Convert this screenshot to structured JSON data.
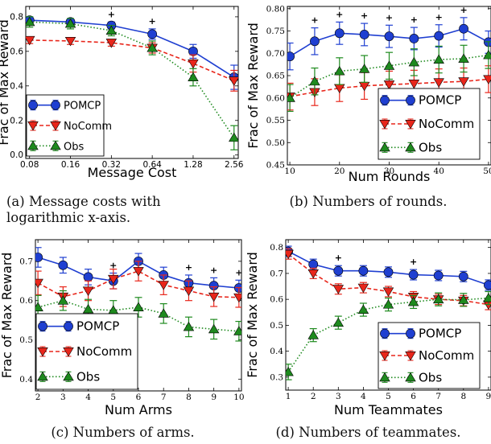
{
  "chart_data": [
    {
      "type": "line",
      "panel": "a",
      "xscale": "log2",
      "x": [
        0.08,
        0.16,
        0.32,
        0.64,
        1.28,
        2.56
      ],
      "xticks": [
        0.08,
        0.16,
        0.32,
        0.64,
        1.28,
        2.56
      ],
      "xtick_labels": [
        "0.08",
        "0.16",
        "0.32",
        "0.64",
        "1.28",
        "2.56"
      ],
      "yticks": [
        0.0,
        0.2,
        0.4,
        0.6,
        0.8
      ],
      "ytick_labels": [
        "0.0",
        "0.2",
        "0.4",
        "0.6",
        "0.8"
      ],
      "xlim": [
        0.075,
        2.75
      ],
      "ylim": [
        -0.02,
        0.86
      ],
      "xlabel": "Message Cost",
      "ylabel": "Frac of Max Reward",
      "legend_position": "bottom-left",
      "series": [
        {
          "name": "POMCP",
          "values": [
            0.78,
            0.77,
            0.75,
            0.7,
            0.6,
            0.45
          ],
          "err": [
            0.02,
            0.02,
            0.02,
            0.03,
            0.04,
            0.07
          ]
        },
        {
          "name": "NoComm",
          "values": [
            0.665,
            0.66,
            0.65,
            0.62,
            0.53,
            0.43
          ],
          "err": [
            0.02,
            0.02,
            0.02,
            0.03,
            0.05,
            0.06
          ]
        },
        {
          "name": "Obs",
          "values": [
            0.77,
            0.76,
            0.72,
            0.62,
            0.45,
            0.1
          ],
          "err": [
            0.03,
            0.03,
            0.03,
            0.04,
            0.05,
            0.07
          ]
        }
      ],
      "significance_marks": [
        0.32,
        0.64
      ],
      "caption": "(a) Message costs with logarithmic x-axis."
    },
    {
      "type": "line",
      "panel": "b",
      "x": [
        10,
        15,
        20,
        25,
        30,
        35,
        40,
        45,
        50
      ],
      "xticks": [
        10,
        20,
        30,
        40,
        50
      ],
      "xtick_labels": [
        "10",
        "20",
        "30",
        "40",
        "50"
      ],
      "yticks": [
        0.45,
        0.5,
        0.55,
        0.6,
        0.65,
        0.7,
        0.75,
        0.8
      ],
      "ytick_labels": [
        "0.45",
        "0.50",
        "0.55",
        "0.60",
        "0.65",
        "0.70",
        "0.75",
        "0.80"
      ],
      "xlim": [
        9.5,
        50.5
      ],
      "ylim": [
        0.45,
        0.805
      ],
      "xlabel": "Num Rounds",
      "ylabel": "Frac of Max Reward",
      "legend_position": "bottom-right",
      "series": [
        {
          "name": "POMCP",
          "values": [
            0.693,
            0.727,
            0.745,
            0.742,
            0.738,
            0.733,
            0.739,
            0.755,
            0.725
          ],
          "err": [
            0.03,
            0.03,
            0.025,
            0.025,
            0.025,
            0.025,
            0.025,
            0.025,
            0.025
          ]
        },
        {
          "name": "NoComm",
          "values": [
            0.603,
            0.613,
            0.622,
            0.627,
            0.63,
            0.632,
            0.635,
            0.637,
            0.642
          ],
          "err": [
            0.03,
            0.03,
            0.03,
            0.03,
            0.03,
            0.03,
            0.03,
            0.03,
            0.03
          ]
        },
        {
          "name": "Obs",
          "values": [
            0.6,
            0.637,
            0.66,
            0.665,
            0.672,
            0.68,
            0.686,
            0.688,
            0.696
          ],
          "err": [
            0.03,
            0.03,
            0.03,
            0.03,
            0.03,
            0.03,
            0.03,
            0.03,
            0.03
          ]
        }
      ],
      "significance_marks": [
        15,
        20,
        25,
        30,
        35,
        40,
        45
      ],
      "caption": "(b) Numbers of rounds."
    },
    {
      "type": "line",
      "panel": "c",
      "x": [
        2,
        3,
        4,
        5,
        6,
        7,
        8,
        9,
        10
      ],
      "xticks": [
        2,
        3,
        4,
        5,
        6,
        7,
        8,
        9,
        10
      ],
      "xtick_labels": [
        "2",
        "3",
        "4",
        "5",
        "6",
        "7",
        "8",
        "9",
        "10"
      ],
      "yticks": [
        0.4,
        0.5,
        0.6,
        0.7
      ],
      "ytick_labels": [
        "0.4",
        "0.5",
        "0.6",
        "0.7"
      ],
      "xlim": [
        1.9,
        10.1
      ],
      "ylim": [
        0.37,
        0.755
      ],
      "xlabel": "Num Arms",
      "ylabel": "Frac of Max Reward",
      "legend_position": "bottom-left",
      "series": [
        {
          "name": "POMCP",
          "values": [
            0.71,
            0.69,
            0.66,
            0.65,
            0.7,
            0.665,
            0.645,
            0.638,
            0.632
          ],
          "err": [
            0.025,
            0.02,
            0.02,
            0.02,
            0.02,
            0.02,
            0.02,
            0.02,
            0.02
          ]
        },
        {
          "name": "NoComm",
          "values": [
            0.645,
            0.61,
            0.625,
            0.655,
            0.675,
            0.64,
            0.625,
            0.61,
            0.608
          ],
          "err": [
            0.03,
            0.025,
            0.025,
            0.025,
            0.025,
            0.025,
            0.025,
            0.025,
            0.025
          ]
        },
        {
          "name": "Obs",
          "values": [
            0.583,
            0.6,
            0.578,
            0.575,
            0.583,
            0.567,
            0.533,
            0.527,
            0.522
          ],
          "err": [
            0.03,
            0.025,
            0.025,
            0.025,
            0.025,
            0.025,
            0.025,
            0.025,
            0.025
          ]
        }
      ],
      "significance_marks": [
        5,
        8,
        9,
        10
      ],
      "caption": "(c) Numbers of arms."
    },
    {
      "type": "line",
      "panel": "d",
      "x": [
        1,
        2,
        3,
        4,
        5,
        6,
        7,
        8,
        9
      ],
      "xticks": [
        1,
        2,
        3,
        4,
        5,
        6,
        7,
        8,
        9
      ],
      "xtick_labels": [
        "1",
        "2",
        "3",
        "4",
        "5",
        "6",
        "7",
        "8",
        "9"
      ],
      "yticks": [
        0.3,
        0.4,
        0.5,
        0.6,
        0.7,
        0.8
      ],
      "ytick_labels": [
        "0.3",
        "0.4",
        "0.5",
        "0.6",
        "0.7",
        "0.8"
      ],
      "xlim": [
        0.9,
        9.1
      ],
      "ylim": [
        0.25,
        0.83
      ],
      "xlabel": "Num Teammates",
      "ylabel": "Frac of Max Reward",
      "legend_position": "bottom-right",
      "series": [
        {
          "name": "POMCP",
          "values": [
            0.785,
            0.735,
            0.71,
            0.71,
            0.705,
            0.695,
            0.692,
            0.688,
            0.655
          ],
          "err": [
            0.02,
            0.02,
            0.02,
            0.02,
            0.02,
            0.02,
            0.02,
            0.02,
            0.02
          ]
        },
        {
          "name": "NoComm",
          "values": [
            0.775,
            0.7,
            0.64,
            0.645,
            0.63,
            0.61,
            0.6,
            0.595,
            0.58
          ],
          "err": [
            0.02,
            0.02,
            0.02,
            0.02,
            0.02,
            0.02,
            0.02,
            0.02,
            0.02
          ]
        },
        {
          "name": "Obs",
          "values": [
            0.32,
            0.462,
            0.51,
            0.56,
            0.58,
            0.59,
            0.6,
            0.598,
            0.605
          ],
          "err": [
            0.03,
            0.025,
            0.025,
            0.025,
            0.025,
            0.025,
            0.025,
            0.025,
            0.025
          ]
        }
      ],
      "significance_marks": [
        3,
        6
      ],
      "caption": "(d) Numbers of teammates."
    }
  ],
  "style": {
    "POMCP": {
      "color": "#1f3fd1",
      "marker": "circle",
      "dash": "solid"
    },
    "NoComm": {
      "color": "#e8261b",
      "marker": "triangle-down",
      "dash": "dashed"
    },
    "Obs": {
      "color": "#1e8a1e",
      "marker": "triangle-up",
      "dash": "dotted"
    }
  }
}
